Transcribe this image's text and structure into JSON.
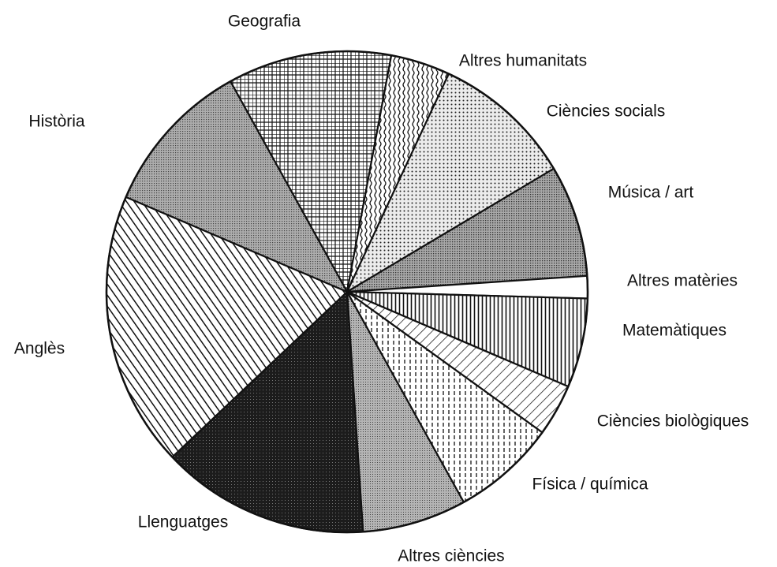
{
  "chart_data": {
    "type": "pie",
    "categories": [
      "Geografia",
      "Altres humanitats",
      "Ciències socials",
      "Música / art",
      "Altres matèries",
      "Matemàtiques",
      "Ciències biològiques",
      "Física / química",
      "Altres ciències",
      "Llenguatges",
      "Anglès",
      "Història"
    ],
    "values": [
      11,
      4,
      9.5,
      7.5,
      1.5,
      6,
      3.5,
      7,
      7,
      14,
      18.5,
      10.5
    ],
    "colors": [
      "#ffffff",
      "#ffffff",
      "#ececec",
      "#a8a8a8",
      "#ffffff",
      "#ffffff",
      "#ffffff",
      "#ffffff",
      "#b4b4b4",
      "#1c1c1c",
      "#ffffff",
      "#adadad"
    ],
    "startangle": -29,
    "direction": "clockwise"
  }
}
